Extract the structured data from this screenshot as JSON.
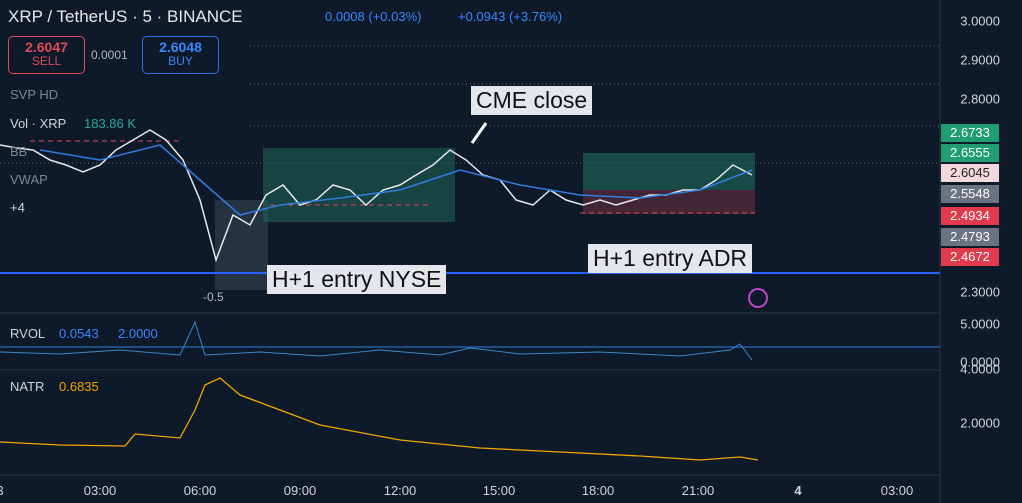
{
  "header": {
    "symbol": "XRP / TetherUS · 5 · BINANCE",
    "change_bar": "0.0008 (+0.03%)",
    "change_day": "+0.0943 (+3.76%)"
  },
  "trade": {
    "sell_price": "2.6047",
    "sell_label": "SELL",
    "spread": "0.0001",
    "buy_price": "2.6048",
    "buy_label": "BUY"
  },
  "indicators": {
    "svp": "SVP HD",
    "vol_name": "Vol · XRP",
    "vol_value": "183.86 K",
    "bb": "BB",
    "vwap": "VWAP",
    "more": "+4"
  },
  "annotations": {
    "cme": "CME close",
    "nyse": "H+1 entry NYSE",
    "adr": "H+1 entry ADR",
    "fib": "-0.5"
  },
  "price_axis": [
    "3.0000",
    "2.9000",
    "2.8000",
    "2.3000"
  ],
  "price_tags": [
    "2.6733",
    "2.6555",
    "2.6045",
    "2.5548",
    "2.4934",
    "2.4793",
    "2.4672"
  ],
  "rvol": {
    "name": "RVOL",
    "value": "0.0543",
    "threshold": "2.0000",
    "axis": [
      "5.0000",
      "0.0000"
    ]
  },
  "natr": {
    "name": "NATR",
    "value": "0.6835",
    "axis": [
      "4.0000",
      "2.0000"
    ]
  },
  "time_axis": [
    "3",
    "03:00",
    "06:00",
    "09:00",
    "12:00",
    "15:00",
    "18:00",
    "21:00",
    "4",
    "03:00"
  ]
}
